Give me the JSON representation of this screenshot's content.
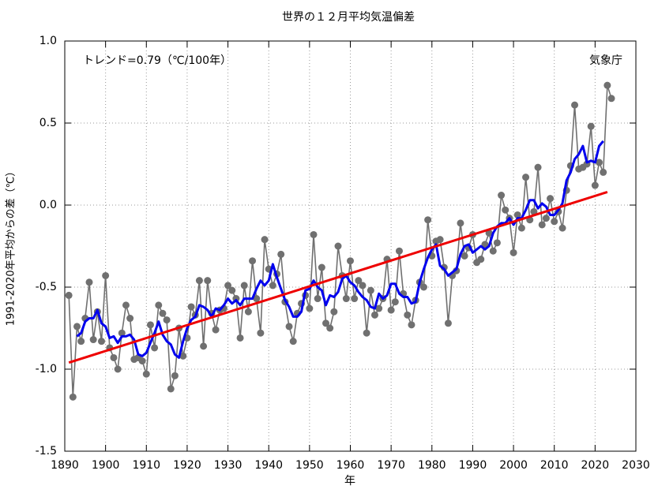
{
  "chart_data": {
    "type": "line",
    "title": "世界の１２月平均気温偏差",
    "xlabel": "年",
    "ylabel": "1991-2020年平均からの差（℃）",
    "annotations": [
      "トレンド=0.79（℃/100年）",
      "気象庁"
    ],
    "xlim": [
      1890,
      2030
    ],
    "xticks": [
      1890,
      1900,
      1910,
      1920,
      1930,
      1940,
      1950,
      1960,
      1970,
      1980,
      1990,
      2000,
      2010,
      2020,
      2030
    ],
    "ylim": [
      -1.5,
      1.0
    ],
    "yticks": [
      {
        "value": -1.5,
        "label": "-1.5"
      },
      {
        "value": -1,
        "label": "-1.0"
      },
      -0.5,
      {
        "value": 0,
        "label": "0.0"
      },
      0.5,
      {
        "value": 1,
        "label": "1.0"
      }
    ],
    "grid": true,
    "x": [
      1891,
      1892,
      1893,
      1894,
      1895,
      1896,
      1897,
      1898,
      1899,
      1900,
      1901,
      1902,
      1903,
      1904,
      1905,
      1906,
      1907,
      1908,
      1909,
      1910,
      1911,
      1912,
      1913,
      1914,
      1915,
      1916,
      1917,
      1918,
      1919,
      1920,
      1921,
      1922,
      1923,
      1924,
      1925,
      1926,
      1927,
      1928,
      1929,
      1930,
      1931,
      1932,
      1933,
      1934,
      1935,
      1936,
      1937,
      1938,
      1939,
      1940,
      1941,
      1942,
      1943,
      1944,
      1945,
      1946,
      1947,
      1948,
      1949,
      1950,
      1951,
      1952,
      1953,
      1954,
      1955,
      1956,
      1957,
      1958,
      1959,
      1960,
      1961,
      1962,
      1963,
      1964,
      1965,
      1966,
      1967,
      1968,
      1969,
      1970,
      1971,
      1972,
      1973,
      1974,
      1975,
      1976,
      1977,
      1978,
      1979,
      1980,
      1981,
      1982,
      1983,
      1984,
      1985,
      1986,
      1987,
      1988,
      1989,
      1990,
      1991,
      1992,
      1993,
      1994,
      1995,
      1996,
      1997,
      1998,
      1999,
      2000,
      2001,
      2002,
      2003,
      2004,
      2005,
      2006,
      2007,
      2008,
      2009,
      2010,
      2011,
      2012,
      2013,
      2014,
      2015,
      2016,
      2017,
      2018,
      2019,
      2020,
      2021,
      2022,
      2023,
      2024
    ],
    "series": [
      {
        "color": "#707070",
        "markers": true,
        "values": [
          -0.55,
          -1.17,
          -0.74,
          -0.83,
          -0.69,
          -0.47,
          -0.82,
          -0.65,
          -0.83,
          -0.43,
          -0.87,
          -0.93,
          -1.0,
          -0.78,
          -0.61,
          -0.69,
          -0.94,
          -0.93,
          -0.95,
          -1.03,
          -0.73,
          -0.87,
          -0.61,
          -0.66,
          -0.7,
          -1.12,
          -1.04,
          -0.75,
          -0.92,
          -0.81,
          -0.62,
          -0.67,
          -0.46,
          -0.86,
          -0.46,
          -0.66,
          -0.76,
          -0.64,
          -0.63,
          -0.49,
          -0.52,
          -0.57,
          -0.81,
          -0.49,
          -0.65,
          -0.34,
          -0.57,
          -0.78,
          -0.21,
          -0.39,
          -0.49,
          -0.42,
          -0.3,
          -0.59,
          -0.74,
          -0.83,
          -0.66,
          -0.6,
          -0.55,
          -0.63,
          -0.18,
          -0.57,
          -0.38,
          -0.72,
          -0.75,
          -0.65,
          -0.25,
          -0.43,
          -0.57,
          -0.34,
          -0.57,
          -0.46,
          -0.49,
          -0.78,
          -0.52,
          -0.67,
          -0.63,
          -0.57,
          -0.33,
          -0.64,
          -0.59,
          -0.28,
          -0.54,
          -0.67,
          -0.73,
          -0.58,
          -0.47,
          -0.5,
          -0.09,
          -0.31,
          -0.22,
          -0.21,
          -0.38,
          -0.72,
          -0.43,
          -0.4,
          -0.11,
          -0.31,
          -0.26,
          -0.18,
          -0.35,
          -0.33,
          -0.24,
          -0.17,
          -0.28,
          -0.23,
          0.06,
          -0.03,
          -0.08,
          -0.29,
          -0.06,
          -0.14,
          0.17,
          -0.09,
          -0.04,
          0.23,
          -0.12,
          -0.08,
          0.04,
          -0.1,
          -0.04,
          -0.14,
          0.09,
          0.24,
          0.61,
          0.22,
          0.23,
          0.25,
          0.48,
          0.12,
          0.26,
          0.2,
          0.73,
          0.65
        ]
      },
      {
        "color": "#0000ee",
        "markers": false,
        "values": [
          null,
          null,
          -0.8,
          -0.78,
          -0.71,
          -0.69,
          -0.69,
          -0.64,
          -0.72,
          -0.74,
          -0.81,
          -0.8,
          -0.84,
          -0.8,
          -0.8,
          -0.79,
          -0.82,
          -0.91,
          -0.92,
          -0.9,
          -0.84,
          -0.78,
          -0.71,
          -0.79,
          -0.83,
          -0.85,
          -0.91,
          -0.93,
          -0.83,
          -0.75,
          -0.7,
          -0.68,
          -0.61,
          -0.62,
          -0.64,
          -0.68,
          -0.63,
          -0.64,
          -0.61,
          -0.57,
          -0.6,
          -0.58,
          -0.61,
          -0.57,
          -0.57,
          -0.57,
          -0.51,
          -0.46,
          -0.49,
          -0.46,
          -0.36,
          -0.44,
          -0.51,
          -0.58,
          -0.62,
          -0.68,
          -0.68,
          -0.65,
          -0.52,
          -0.51,
          -0.46,
          -0.5,
          -0.52,
          -0.61,
          -0.55,
          -0.56,
          -0.53,
          -0.45,
          -0.43,
          -0.47,
          -0.49,
          -0.53,
          -0.56,
          -0.58,
          -0.62,
          -0.63,
          -0.54,
          -0.57,
          -0.55,
          -0.48,
          -0.48,
          -0.54,
          -0.56,
          -0.56,
          -0.6,
          -0.59,
          -0.47,
          -0.39,
          -0.32,
          -0.27,
          -0.24,
          -0.37,
          -0.39,
          -0.43,
          -0.41,
          -0.39,
          -0.3,
          -0.25,
          -0.24,
          -0.29,
          -0.27,
          -0.25,
          -0.27,
          -0.25,
          -0.17,
          -0.13,
          -0.11,
          -0.11,
          -0.08,
          -0.12,
          -0.08,
          -0.08,
          -0.03,
          0.03,
          0.03,
          -0.02,
          0.01,
          -0.01,
          -0.06,
          -0.06,
          -0.03,
          0.01,
          0.15,
          0.2,
          0.28,
          0.31,
          0.36,
          0.26,
          0.27,
          0.26,
          0.36,
          0.39,
          null,
          null
        ]
      }
    ],
    "trend": {
      "color": "#ee0000",
      "x": [
        1891,
        2023
      ],
      "values": [
        -0.96,
        0.08
      ]
    }
  }
}
